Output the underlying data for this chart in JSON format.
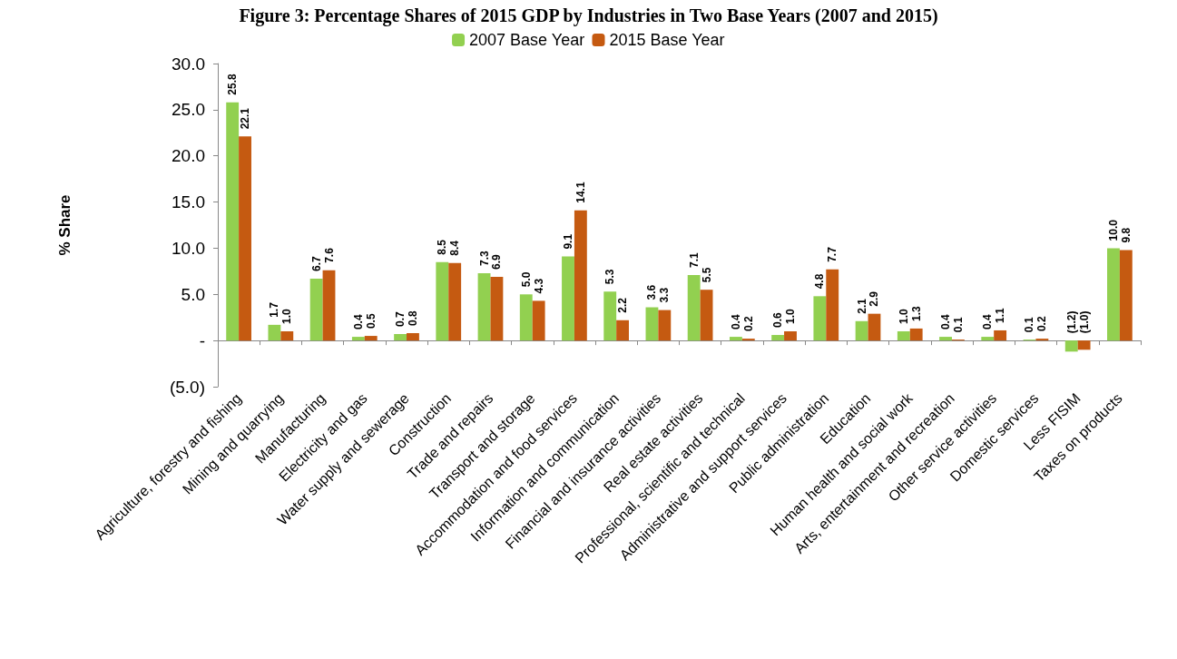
{
  "chart_data": {
    "type": "bar",
    "title": "Figure 3: Percentage Shares of 2015 GDP by Industries in Two Base Years (2007 and 2015)",
    "ylabel": "% Share",
    "categories": [
      "Agriculture, forestry and fishing",
      "Mining and quarrying",
      "Manufacturing",
      "Electricity and gas",
      "Water supply and sewerage",
      "Construction",
      "Trade and repairs",
      "Transport and storage",
      "Accommodation and food services",
      "Information and communication",
      "Financial and insurance activities",
      "Real estate activities",
      "Professional, scientific and technical",
      "Administrative and support services",
      "Public administration",
      "Education",
      "Human health and social work",
      "Arts, entertainment and recreation",
      "Other service activities",
      "Domestic services",
      "Less FISIM",
      "Taxes on products"
    ],
    "series": [
      {
        "name": "2007 Base Year",
        "color": "#92d050",
        "values": [
          25.8,
          1.7,
          6.7,
          0.4,
          0.7,
          8.5,
          7.3,
          5.0,
          9.1,
          5.3,
          3.6,
          7.1,
          0.4,
          0.6,
          4.8,
          2.1,
          1.0,
          0.4,
          0.4,
          0.1,
          -1.2,
          10.0
        ],
        "value_labels": [
          "25.8",
          "1.7",
          "6.7",
          "0.4",
          "0.7",
          "8.5",
          "7.3",
          "5.0",
          "9.1",
          "5.3",
          "3.6",
          "7.1",
          "0.4",
          "0.6",
          "4.8",
          "2.1",
          "1.0",
          "0.4",
          "0.4",
          "0.1",
          "(1.2)",
          "10.0"
        ]
      },
      {
        "name": "2015 Base Year",
        "color": "#c55a11",
        "values": [
          22.1,
          1.0,
          7.6,
          0.5,
          0.8,
          8.4,
          6.9,
          4.3,
          14.1,
          2.2,
          3.3,
          5.5,
          0.2,
          1.0,
          7.7,
          2.9,
          1.3,
          0.1,
          1.1,
          0.2,
          -1.0,
          9.8
        ],
        "value_labels": [
          "22.1",
          "1.0",
          "7.6",
          "0.5",
          "0.8",
          "8.4",
          "6.9",
          "4.3",
          "14.1",
          "2.2",
          "3.3",
          "5.5",
          "0.2",
          "1.0",
          "7.7",
          "2.9",
          "1.3",
          "0.1",
          "1.1",
          "0.2",
          "(1.0)",
          "9.8"
        ]
      }
    ],
    "ylim": [
      -5,
      30
    ],
    "yticks": [
      {
        "value": -5,
        "label": "(5.0)"
      },
      {
        "value": 0,
        "label": "-"
      },
      {
        "value": 5,
        "label": "5.0"
      },
      {
        "value": 10,
        "label": "10.0"
      },
      {
        "value": 15,
        "label": "15.0"
      },
      {
        "value": 20,
        "label": "20.0"
      },
      {
        "value": 25,
        "label": "25.0"
      },
      {
        "value": 30,
        "label": "30.0"
      }
    ],
    "legend": "top"
  }
}
